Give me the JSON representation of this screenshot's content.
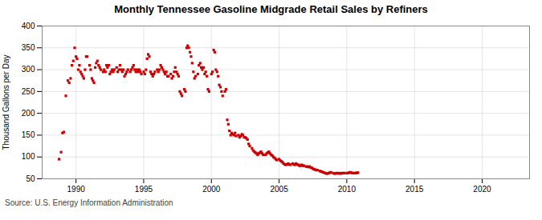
{
  "chart_data": {
    "type": "scatter",
    "title": "Monthly Tennessee Gasoline Midgrade Retail Sales by Refiners",
    "ylabel": "Thousand Gallons per Day",
    "source": "Source: U.S. Energy Information Administration",
    "color": "#cc0000",
    "marker": "square",
    "grid": true,
    "xlim": [
      1987.5,
      2023.5
    ],
    "ylim": [
      50,
      400
    ],
    "xticks": [
      1990,
      1995,
      2000,
      2005,
      2010,
      2015,
      2020
    ],
    "yticks": [
      50,
      100,
      150,
      200,
      250,
      300,
      350,
      400
    ],
    "x": [
      1988.75,
      1988.9,
      1989.0,
      1989.1,
      1989.25,
      1989.4,
      1989.5,
      1989.6,
      1989.7,
      1989.8,
      1989.9,
      1990.0,
      1990.08,
      1990.17,
      1990.25,
      1990.33,
      1990.42,
      1990.5,
      1990.58,
      1990.67,
      1990.75,
      1990.83,
      1991.0,
      1991.08,
      1991.17,
      1991.25,
      1991.33,
      1991.42,
      1991.5,
      1991.58,
      1991.67,
      1991.75,
      1991.83,
      1992.0,
      1992.08,
      1992.17,
      1992.25,
      1992.33,
      1992.42,
      1992.5,
      1992.58,
      1992.67,
      1992.75,
      1992.83,
      1993.0,
      1993.08,
      1993.17,
      1993.25,
      1993.33,
      1993.42,
      1993.5,
      1993.58,
      1993.67,
      1993.75,
      1993.83,
      1994.0,
      1994.08,
      1994.17,
      1994.25,
      1994.33,
      1994.42,
      1994.5,
      1994.58,
      1994.67,
      1994.75,
      1994.83,
      1995.0,
      1995.08,
      1995.17,
      1995.25,
      1995.33,
      1995.42,
      1995.5,
      1995.58,
      1995.67,
      1995.75,
      1995.83,
      1996.0,
      1996.08,
      1996.17,
      1996.25,
      1996.33,
      1996.42,
      1996.5,
      1996.58,
      1996.67,
      1996.75,
      1996.83,
      1997.0,
      1997.08,
      1997.17,
      1997.25,
      1997.33,
      1997.42,
      1997.5,
      1997.58,
      1997.67,
      1997.75,
      1997.83,
      1998.0,
      1998.08,
      1998.17,
      1998.25,
      1998.33,
      1998.42,
      1998.5,
      1998.58,
      1998.67,
      1998.75,
      1998.83,
      1999.0,
      1999.08,
      1999.17,
      1999.25,
      1999.33,
      1999.42,
      1999.5,
      1999.58,
      1999.67,
      1999.75,
      1999.83,
      2000.0,
      2000.08,
      2000.17,
      2000.25,
      2000.33,
      2000.42,
      2000.5,
      2000.58,
      2000.67,
      2000.75,
      2000.83,
      2001.0,
      2001.08,
      2001.17,
      2001.25,
      2001.33,
      2001.42,
      2001.5,
      2001.58,
      2001.67,
      2001.75,
      2001.83,
      2002.0,
      2002.08,
      2002.17,
      2002.25,
      2002.33,
      2002.42,
      2002.5,
      2002.58,
      2002.67,
      2002.75,
      2002.83,
      2003.0,
      2003.08,
      2003.17,
      2003.25,
      2003.33,
      2003.42,
      2003.5,
      2003.58,
      2003.67,
      2003.75,
      2003.83,
      2004.0,
      2004.08,
      2004.17,
      2004.25,
      2004.33,
      2004.42,
      2004.5,
      2004.58,
      2004.67,
      2004.75,
      2004.83,
      2005.0,
      2005.08,
      2005.17,
      2005.25,
      2005.33,
      2005.42,
      2005.5,
      2005.58,
      2005.67,
      2005.75,
      2005.83,
      2006.0,
      2006.08,
      2006.17,
      2006.25,
      2006.33,
      2006.42,
      2006.5,
      2006.58,
      2006.67,
      2006.75,
      2006.83,
      2007.0,
      2007.08,
      2007.17,
      2007.25,
      2007.33,
      2007.42,
      2007.5,
      2007.58,
      2007.67,
      2007.75,
      2007.83,
      2008.0,
      2008.08,
      2008.17,
      2008.25,
      2008.33,
      2008.42,
      2008.5,
      2008.58,
      2008.67,
      2008.75,
      2008.83,
      2009.0,
      2009.08,
      2009.17,
      2009.25,
      2009.33,
      2009.42,
      2009.5,
      2009.58,
      2009.67,
      2009.75,
      2009.83,
      2010.0,
      2010.08,
      2010.17,
      2010.25,
      2010.33,
      2010.42,
      2010.5,
      2010.58,
      2010.67,
      2010.75,
      2010.83
    ],
    "values": [
      95,
      111,
      155,
      157,
      240,
      275,
      270,
      280,
      310,
      320,
      350,
      330,
      325,
      300,
      310,
      295,
      290,
      285,
      280,
      300,
      330,
      330,
      310,
      300,
      280,
      275,
      270,
      305,
      315,
      320,
      310,
      305,
      300,
      295,
      300,
      295,
      310,
      305,
      310,
      290,
      295,
      300,
      295,
      300,
      305,
      295,
      300,
      310,
      300,
      295,
      300,
      285,
      290,
      295,
      300,
      295,
      300,
      305,
      310,
      300,
      295,
      300,
      295,
      300,
      295,
      290,
      295,
      290,
      300,
      325,
      335,
      330,
      295,
      290,
      285,
      290,
      295,
      300,
      295,
      300,
      310,
      305,
      300,
      295,
      290,
      295,
      285,
      285,
      290,
      280,
      285,
      295,
      305,
      295,
      290,
      285,
      250,
      245,
      240,
      255,
      250,
      350,
      355,
      350,
      340,
      330,
      315,
      295,
      280,
      285,
      290,
      310,
      315,
      305,
      300,
      305,
      290,
      295,
      285,
      255,
      250,
      290,
      295,
      345,
      340,
      300,
      295,
      285,
      265,
      260,
      250,
      240,
      250,
      255,
      185,
      175,
      160,
      150,
      155,
      152,
      150,
      155,
      148,
      150,
      145,
      148,
      152,
      150,
      145,
      145,
      143,
      140,
      130,
      125,
      120,
      115,
      112,
      110,
      108,
      105,
      108,
      110,
      112,
      108,
      105,
      105,
      108,
      110,
      112,
      108,
      105,
      103,
      100,
      98,
      95,
      93,
      95,
      92,
      90,
      88,
      85,
      83,
      82,
      83,
      85,
      83,
      82,
      85,
      83,
      82,
      85,
      83,
      82,
      80,
      80,
      82,
      80,
      80,
      78,
      78,
      77,
      78,
      76,
      75,
      73,
      72,
      71,
      70,
      70,
      68,
      67,
      66,
      65,
      64,
      63,
      62,
      62,
      63,
      64,
      65,
      63,
      62,
      62,
      63,
      63,
      62,
      63,
      62,
      63,
      63,
      63,
      63,
      63,
      64,
      65,
      64,
      63,
      63,
      63,
      63,
      64,
      64
    ]
  }
}
